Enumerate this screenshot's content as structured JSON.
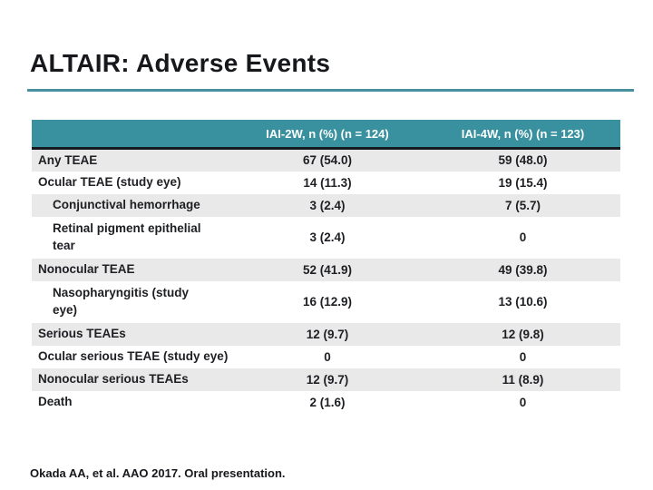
{
  "title": "ALTAIR: Adverse Events",
  "table": {
    "headers": [
      "",
      "IAI-2W, n (%) (n = 124)",
      "IAI-4W, n (%) (n = 123)"
    ],
    "rows": [
      {
        "label": "Any TEAE",
        "iai2w": "67 (54.0)",
        "iai4w": "59 (48.0)"
      },
      {
        "label": "Ocular TEAE (study eye)",
        "iai2w": "14 (11.3)",
        "iai4w": "19 (15.4)"
      },
      {
        "label": "Conjunctival hemorrhage",
        "iai2w": "3 (2.4)",
        "iai4w": "7 (5.7)"
      },
      {
        "label": "Retinal pigment epithelial\ntear",
        "iai2w": "3 (2.4)",
        "iai4w": "0"
      },
      {
        "label": "Nonocular TEAE",
        "iai2w": "52 (41.9)",
        "iai4w": "49 (39.8)"
      },
      {
        "label": "Nasopharyngitis (study\neye)",
        "iai2w": "16 (12.9)",
        "iai4w": "13 (10.6)"
      },
      {
        "label": "Serious TEAEs",
        "iai2w": "12 (9.7)",
        "iai4w": "12 (9.8)"
      },
      {
        "label": "Ocular serious TEAE (study eye)",
        "iai2w": "0",
        "iai4w": "0"
      },
      {
        "label": "Nonocular serious TEAEs",
        "iai2w": "12 (9.7)",
        "iai4w": "11 (8.9)"
      },
      {
        "label": "Death",
        "iai2w": "2 (1.6)",
        "iai4w": "0"
      }
    ]
  },
  "footer": {
    "citation": "Okada AA, et al. AAO 2017. Oral presentation."
  },
  "colors": {
    "header_teal": "#39919F",
    "row_gray": "#E9E9E9",
    "title_rule_teal": "#47919E",
    "header_divider": "#141A20"
  }
}
